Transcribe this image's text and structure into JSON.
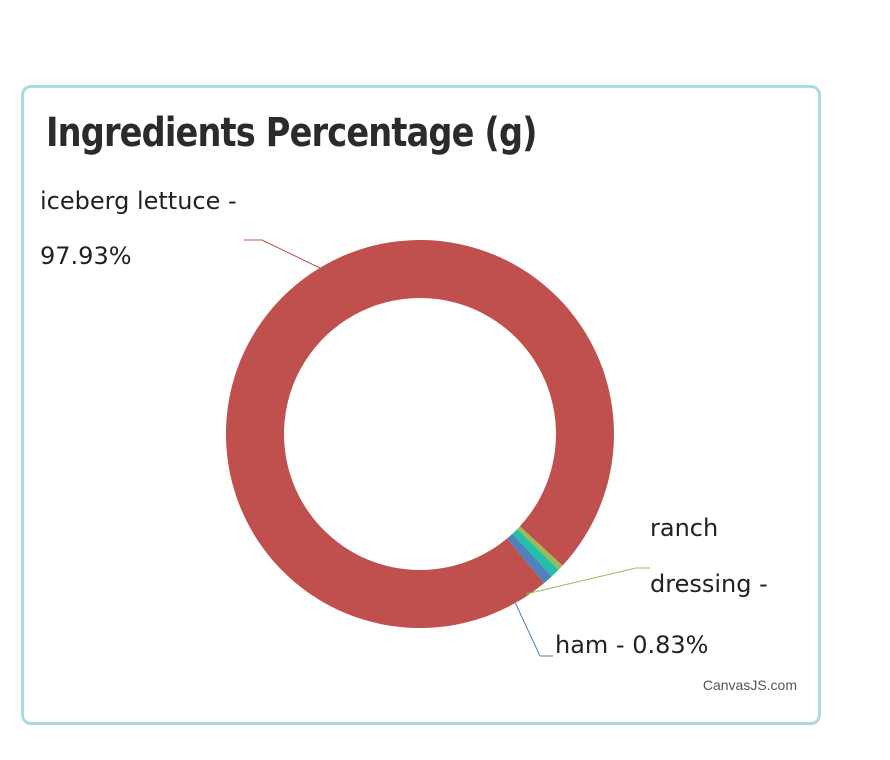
{
  "title": "Ingredients Percentage (g)",
  "credit": "CanvasJS.com",
  "chart_data": {
    "type": "pie",
    "variant": "doughnut",
    "title": "Ingredients Percentage (g)",
    "slices": [
      {
        "name": "iceberg lettuce",
        "value": 97.93,
        "color": "#c0504d",
        "label_lines": [
          "iceberg lettuce -",
          "97.93%"
        ]
      },
      {
        "name": "ranch dressing",
        "value": 0.45,
        "color": "#9bbb59",
        "label_lines": [
          "ranch",
          "dressing -"
        ]
      },
      {
        "name": "",
        "value": 0.79,
        "color": "#23bfaa",
        "label_lines": []
      },
      {
        "name": "ham",
        "value": 0.83,
        "color": "#4f81bc",
        "label_lines": [
          "ham - 0.83%"
        ]
      }
    ]
  }
}
